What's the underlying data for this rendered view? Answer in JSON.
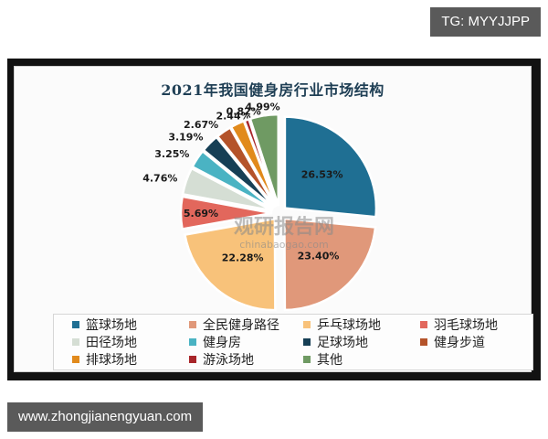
{
  "watermark_top": "TG: MYYJJPP",
  "watermark_bottom": "www.zhongjianengyuan.com",
  "chart_watermark": {
    "cn": "观研报告网",
    "en": "chinabaogao.com"
  },
  "chart_data": {
    "type": "pie",
    "title": "2021年我国健身房行业市场结构",
    "exploded": true,
    "start_angle": "12 o'clock",
    "direction": "clockwise",
    "slices": [
      {
        "label": "篮球场地",
        "value": 26.53,
        "display": "26.53%",
        "color": "#1f6f93"
      },
      {
        "label": "全民健身路径",
        "value": 23.4,
        "display": "23.40%",
        "color": "#e0987a"
      },
      {
        "label": "乒乓球场地",
        "value": 22.28,
        "display": "22.28%",
        "color": "#f8c27a"
      },
      {
        "label": "羽毛球场地",
        "value": 5.69,
        "display": "5.69%",
        "color": "#e2675c"
      },
      {
        "label": "田径场地",
        "value": 4.76,
        "display": "4.76%",
        "color": "#d5ded4"
      },
      {
        "label": "健身房",
        "value": 3.25,
        "display": "3.25%",
        "color": "#4ab3c3"
      },
      {
        "label": "足球场地",
        "value": 3.19,
        "display": "3.19%",
        "color": "#163f55"
      },
      {
        "label": "健身步道",
        "value": 2.67,
        "display": "2.67%",
        "color": "#b4532a"
      },
      {
        "label": "排球场地",
        "value": 2.44,
        "display": "2.44%",
        "color": "#e18a1c"
      },
      {
        "label": "游泳场地",
        "value": 0.82,
        "display": "0.82%",
        "color": "#a8262a"
      },
      {
        "label": "其他",
        "value": 4.99,
        "display": "4.99%",
        "color": "#6f9a63"
      }
    ],
    "legend_position": "bottom",
    "legend_columns": 4
  }
}
